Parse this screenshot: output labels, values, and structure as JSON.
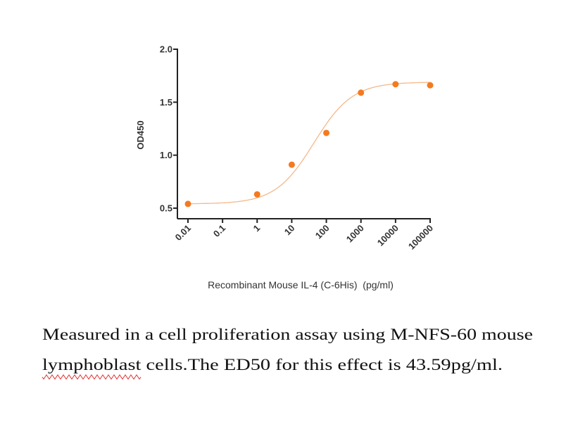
{
  "chart_data": {
    "type": "scatter",
    "xlabel": "Recombinant Mouse IL-4 (C-6His)  (pg/ml)",
    "ylabel": "OD450",
    "xscale": "log",
    "xlim": [
      0.01,
      100000
    ],
    "ylim": [
      0.4,
      2.0
    ],
    "x_ticks": [
      "0.01",
      "0.1",
      "1",
      "10",
      "100",
      "1000",
      "10000",
      "100000"
    ],
    "y_ticks": [
      "0.5",
      "1.0",
      "1.5",
      "2.0"
    ],
    "grid": false,
    "points": {
      "x": [
        0.01,
        1,
        10,
        100,
        1000,
        10000,
        100000
      ],
      "y": [
        0.54,
        0.63,
        0.91,
        1.21,
        1.59,
        1.67,
        1.66
      ]
    },
    "fit_curve": "sigmoidal",
    "colors": {
      "points": "#f47a20",
      "curve": "#f5b88a",
      "axis": "#222222"
    }
  },
  "caption": {
    "line1": "Measured in a cell proliferation assay using M-NFS-60 mouse",
    "line2_word1": "lymphoblast",
    "line2_rest": " cells.The ED50 for this effect is 43.59pg/ml."
  }
}
